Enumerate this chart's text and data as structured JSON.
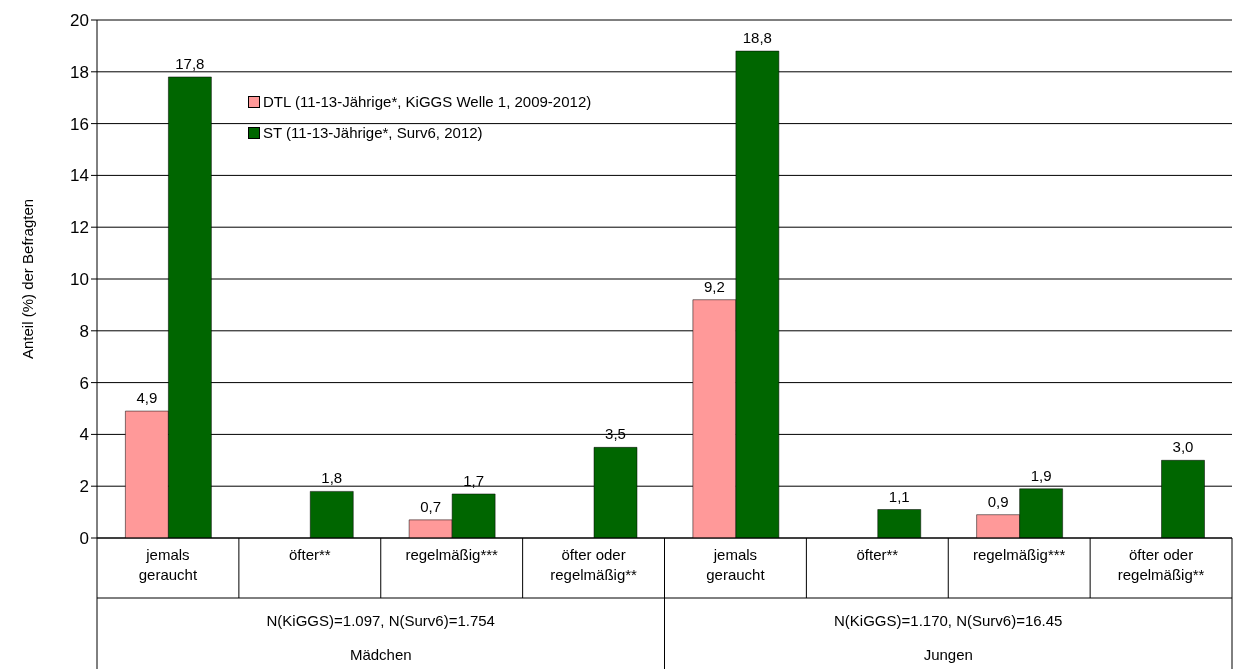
{
  "chart_data": {
    "type": "bar",
    "ylabel": "Anteil (%) der Befragten",
    "categories": [
      "jemals geraucht",
      "öfter**",
      "regelmäßig***",
      "öfter oder regelmäßig**",
      "jemals geraucht",
      "öfter**",
      "regelmäßig***",
      "öfter oder regelmäßig**"
    ],
    "series": [
      {
        "name": "DTL (11-13-Jährige*, KiGGS Welle 1, 2009-2012)",
        "color": "#ff9999",
        "values": [
          4.9,
          null,
          0.7,
          null,
          9.2,
          null,
          0.9,
          null
        ],
        "value_labels": [
          "4,9",
          null,
          "0,7",
          null,
          "9,2",
          null,
          "0,9",
          null
        ]
      },
      {
        "name": "ST (11-13-Jährige*, Surv6, 2012)",
        "color": "#006600",
        "values": [
          17.8,
          1.8,
          1.7,
          3.5,
          18.8,
          1.1,
          1.9,
          3.0
        ],
        "value_labels": [
          "17,8",
          "1,8",
          "1,7",
          "3,5",
          "18,8",
          "1,1",
          "1,9",
          "3,0"
        ]
      }
    ],
    "ylim": [
      0,
      20
    ],
    "yticks": [
      0,
      2,
      4,
      6,
      8,
      10,
      12,
      14,
      16,
      18,
      20
    ],
    "grid": "y",
    "legend": "top left",
    "annotations": [
      "N(KiGGS)=1.097, N(Surv6)=1.754",
      "Mädchen",
      "N(KiGGS)=1.170, N(Surv6)=16.45",
      "Jungen"
    ]
  }
}
